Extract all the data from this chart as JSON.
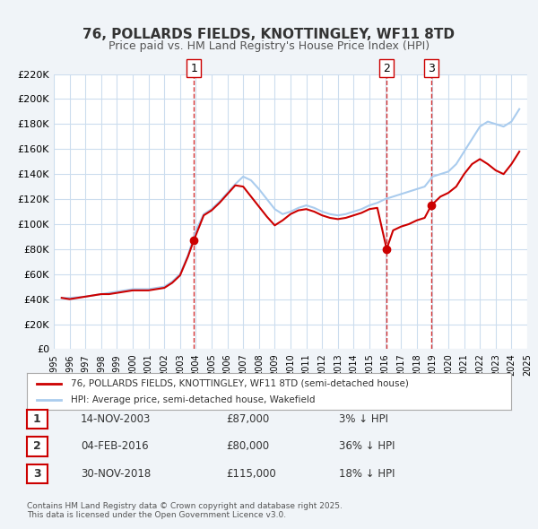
{
  "title": "76, POLLARDS FIELDS, KNOTTINGLEY, WF11 8TD",
  "subtitle": "Price paid vs. HM Land Registry's House Price Index (HPI)",
  "legend_label_red": "76, POLLARDS FIELDS, KNOTTINGLEY, WF11 8TD (semi-detached house)",
  "legend_label_blue": "HPI: Average price, semi-detached house, Wakefield",
  "footnote": "Contains HM Land Registry data © Crown copyright and database right 2025.\nThis data is licensed under the Open Government Licence v3.0.",
  "xlim": [
    1995,
    2025
  ],
  "ylim": [
    0,
    220000
  ],
  "ytick_step": 20000,
  "sales": [
    {
      "label": "1",
      "date_str": "14-NOV-2003",
      "price": 87000,
      "pct": "3%",
      "year_float": 2003.87
    },
    {
      "label": "2",
      "date_str": "04-FEB-2016",
      "price": 80000,
      "pct": "36%",
      "year_float": 2016.09
    },
    {
      "label": "3",
      "date_str": "30-NOV-2018",
      "price": 115000,
      "pct": "18%",
      "year_float": 2018.92
    }
  ],
  "red_color": "#cc0000",
  "blue_color": "#aaccee",
  "vline_color": "#cc0000",
  "background_color": "#f0f4f8",
  "plot_bg_color": "#ffffff",
  "grid_color": "#ccddee",
  "hpi_data": {
    "years": [
      1995.5,
      1996.0,
      1996.5,
      1997.0,
      1997.5,
      1998.0,
      1998.5,
      1999.0,
      1999.5,
      2000.0,
      2000.5,
      2001.0,
      2001.5,
      2002.0,
      2002.5,
      2003.0,
      2003.5,
      2004.0,
      2004.5,
      2005.0,
      2005.5,
      2006.0,
      2006.5,
      2007.0,
      2007.5,
      2008.0,
      2008.5,
      2009.0,
      2009.5,
      2010.0,
      2010.5,
      2011.0,
      2011.5,
      2012.0,
      2012.5,
      2013.0,
      2013.5,
      2014.0,
      2014.5,
      2015.0,
      2015.5,
      2016.0,
      2016.5,
      2017.0,
      2017.5,
      2018.0,
      2018.5,
      2019.0,
      2019.5,
      2020.0,
      2020.5,
      2021.0,
      2021.5,
      2022.0,
      2022.5,
      2023.0,
      2023.5,
      2024.0,
      2024.5
    ],
    "values": [
      41000,
      41000,
      41500,
      42000,
      43000,
      44000,
      45000,
      46000,
      47000,
      48000,
      48000,
      48000,
      49000,
      50000,
      54000,
      60000,
      75000,
      95000,
      108000,
      112000,
      118000,
      125000,
      132000,
      138000,
      135000,
      128000,
      120000,
      112000,
      108000,
      110000,
      113000,
      115000,
      113000,
      110000,
      108000,
      107000,
      108000,
      110000,
      112000,
      115000,
      117000,
      120000,
      122000,
      124000,
      126000,
      128000,
      130000,
      138000,
      140000,
      142000,
      148000,
      158000,
      168000,
      178000,
      182000,
      180000,
      178000,
      182000,
      192000
    ]
  },
  "price_paid_data": {
    "years": [
      1995.5,
      1996.0,
      1996.5,
      1997.0,
      1997.5,
      1998.0,
      1998.5,
      1999.0,
      1999.5,
      2000.0,
      2000.5,
      2001.0,
      2001.5,
      2002.0,
      2002.5,
      2003.0,
      2003.5,
      2003.87,
      2004.5,
      2005.0,
      2005.5,
      2006.0,
      2006.5,
      2007.0,
      2007.5,
      2008.0,
      2008.5,
      2009.0,
      2009.5,
      2010.0,
      2010.5,
      2011.0,
      2011.5,
      2012.0,
      2012.5,
      2013.0,
      2013.5,
      2014.0,
      2014.5,
      2015.0,
      2015.5,
      2016.09,
      2016.5,
      2017.0,
      2017.5,
      2018.0,
      2018.5,
      2018.92,
      2019.5,
      2020.0,
      2020.5,
      2021.0,
      2021.5,
      2022.0,
      2022.5,
      2023.0,
      2023.5,
      2024.0,
      2024.5
    ],
    "values": [
      41000,
      40000,
      41000,
      42000,
      43000,
      44000,
      44000,
      45000,
      46000,
      47000,
      47000,
      47000,
      48000,
      49000,
      53000,
      59000,
      74000,
      87000,
      107000,
      111000,
      117000,
      124000,
      131000,
      130000,
      122000,
      114000,
      106000,
      99000,
      103000,
      108000,
      111000,
      112000,
      110000,
      107000,
      105000,
      104000,
      105000,
      107000,
      109000,
      112000,
      113000,
      80000,
      95000,
      98000,
      100000,
      103000,
      105000,
      115000,
      122000,
      125000,
      130000,
      140000,
      148000,
      152000,
      148000,
      143000,
      140000,
      148000,
      158000
    ]
  }
}
